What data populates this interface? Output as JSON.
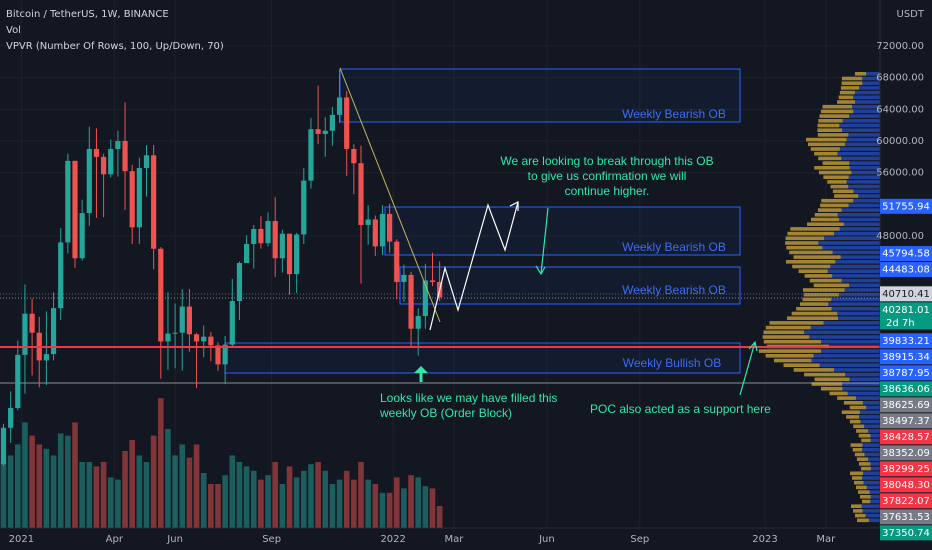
{
  "chart_data": {
    "type": "candlestick",
    "title": "Bitcoin / TetherUS, 1W, BINANCE",
    "indicators": [
      "Vol",
      "VPVR (Number Of Rows, 100, Up/Down, 70)"
    ],
    "currency": "USDT",
    "up_color": "#26a69a",
    "down_color": "#ef5350",
    "open": [
      19200,
      23800,
      26300,
      33000,
      38200,
      35800,
      32300,
      33100,
      38900,
      47200,
      57500,
      45200,
      50900,
      59000,
      58000,
      55800,
      59000,
      60000,
      56200,
      49100,
      56600,
      58200,
      46400,
      34700,
      35700,
      35800,
      39100,
      35600,
      34700,
      35300,
      34200,
      31800,
      34300,
      39800,
      44600,
      47000,
      48900,
      47100,
      49900,
      45200,
      48300,
      43200,
      48200,
      55000,
      61500,
      60900,
      61300,
      63300,
      65500,
      59000,
      57200,
      49400,
      50100,
      46700,
      50800,
      47300,
      42200,
      43100,
      36300,
      37900,
      42400,
      42200
    ],
    "high": [
      24300,
      28400,
      34800,
      41900,
      40100,
      37800,
      38500,
      40900,
      49000,
      58400,
      57500,
      52600,
      61800,
      61600,
      58400,
      60200,
      61300,
      64900,
      57000,
      57900,
      59500,
      59500,
      46600,
      40900,
      39500,
      41300,
      41300,
      35800,
      36700,
      35900,
      34600,
      35400,
      42600,
      44800,
      48100,
      49400,
      50500,
      51000,
      52900,
      48800,
      48300,
      48400,
      56600,
      62900,
      67000,
      63000,
      64300,
      69000,
      66300,
      59600,
      59400,
      51900,
      50600,
      51900,
      52100,
      47600,
      44400,
      43500,
      38900,
      44500,
      45900,
      44800
    ],
    "low": [
      19000,
      21900,
      26000,
      28100,
      30400,
      28900,
      29200,
      32300,
      37400,
      45800,
      44000,
      44900,
      49300,
      50300,
      50400,
      55400,
      55500,
      51300,
      47000,
      47000,
      53000,
      43800,
      30000,
      31100,
      31300,
      31000,
      33400,
      28800,
      32700,
      32200,
      31000,
      29300,
      34000,
      37400,
      44600,
      43900,
      46400,
      46700,
      42800,
      43400,
      40600,
      40800,
      47000,
      54000,
      59600,
      58000,
      59400,
      62300,
      55600,
      53300,
      42000,
      46900,
      45500,
      45600,
      45900,
      40000,
      39700,
      34000,
      32900,
      36300,
      41700,
      39800
    ],
    "close": [
      23800,
      26300,
      33000,
      38200,
      35800,
      32300,
      33100,
      38900,
      47200,
      57500,
      45200,
      50900,
      59000,
      58000,
      55800,
      59000,
      60000,
      56200,
      49100,
      56600,
      58200,
      46400,
      34700,
      35700,
      35800,
      39100,
      35600,
      34700,
      35300,
      34200,
      31800,
      34300,
      39800,
      44600,
      47000,
      48900,
      47100,
      49900,
      45200,
      48300,
      43200,
      48200,
      55000,
      61500,
      60900,
      61300,
      63300,
      65500,
      59000,
      57200,
      49400,
      50100,
      46700,
      50800,
      47300,
      42200,
      43100,
      36300,
      37900,
      42400,
      42200,
      40281
    ],
    "volume": [
      300,
      330,
      380,
      480,
      420,
      380,
      360,
      330,
      430,
      420,
      480,
      300,
      300,
      280,
      300,
      230,
      220,
      350,
      400,
      330,
      300,
      420,
      590,
      450,
      330,
      380,
      320,
      380,
      250,
      200,
      200,
      240,
      330,
      300,
      280,
      260,
      220,
      240,
      300,
      200,
      280,
      230,
      260,
      290,
      300,
      260,
      200,
      220,
      260,
      220,
      300,
      220,
      200,
      160,
      160,
      230,
      180,
      240,
      230,
      190,
      180,
      100
    ],
    "ylim": [
      11141,
      77808
    ],
    "yticks": [
      {
        "value": 72000,
        "label": "72000.00"
      },
      {
        "value": 68000,
        "label": "68000.00"
      },
      {
        "value": 64000,
        "label": "64000.00"
      },
      {
        "value": 60000,
        "label": "60000.00"
      },
      {
        "value": 56000,
        "label": "56000.00"
      },
      {
        "value": 48000,
        "label": "48000.00"
      }
    ],
    "xticks": [
      {
        "value": 2.5,
        "label": "2021"
      },
      {
        "value": 15.5,
        "label": "Apr"
      },
      {
        "value": 24,
        "label": "Jun"
      },
      {
        "value": 37.5,
        "label": "Sep"
      },
      {
        "value": 54.5,
        "label": "2022"
      },
      {
        "value": 63,
        "label": "Mar"
      },
      {
        "value": 76,
        "label": "Jun"
      },
      {
        "value": 89,
        "label": "Sep"
      },
      {
        "value": 106.5,
        "label": "2023"
      },
      {
        "value": 115,
        "label": "Mar"
      }
    ],
    "price_tags": [
      {
        "value": 51755.94,
        "label": "51755.94",
        "color": "#2962ff"
      },
      {
        "value": 45794.58,
        "label": "45794.58",
        "color": "#2962ff"
      },
      {
        "value": 44483.08,
        "label": "44483.08",
        "color": "#2962ff"
      },
      {
        "value": 40710.41,
        "label": "40710.41",
        "color": "#d1d4dc"
      },
      {
        "value": 40281.01,
        "label": "40281.01",
        "color": "#089981"
      },
      {
        "value": 39833.21,
        "label": "39833.21",
        "color": "#2962ff"
      },
      {
        "value": 38915.34,
        "label": "38915.34",
        "color": "#2962ff"
      },
      {
        "value": 38787.95,
        "label": "38787.95",
        "color": "#2962ff"
      },
      {
        "value": 38636.06,
        "label": "38636.06",
        "color": "#089981"
      },
      {
        "value": 38625.69,
        "label": "38625.69",
        "color": "#787b86"
      },
      {
        "value": 38497.37,
        "label": "38497.37",
        "color": "#787b86"
      },
      {
        "value": 38428.57,
        "label": "38428.57",
        "color": "#f23645"
      },
      {
        "value": 38352.09,
        "label": "38352.09",
        "color": "#787b86"
      },
      {
        "value": 38299.25,
        "label": "38299.25",
        "color": "#f23645"
      },
      {
        "value": 38048.3,
        "label": "38048.30",
        "color": "#f23645"
      },
      {
        "value": 37822.07,
        "label": "37822.07",
        "color": "#f23645"
      },
      {
        "value": 37631.53,
        "label": "37631.53",
        "color": "#787b86"
      },
      {
        "value": 37350.74,
        "label": "37350.74",
        "color": "#089981"
      }
    ],
    "countdown": "2d 7h",
    "ob_labels": [
      "Weekly Bearish OB",
      "Weekly Bearish OB",
      "Weekly Bearish OB",
      "Weekly Bullish OB"
    ],
    "note_top": [
      "We are looking to break through this OB",
      "to give us confirmation we will",
      "continue higher."
    ],
    "note_bottom": [
      "Looks like we may have filled this",
      "weekly OB (Order Block)"
    ],
    "note_poc": "POC also acted as a support here"
  }
}
